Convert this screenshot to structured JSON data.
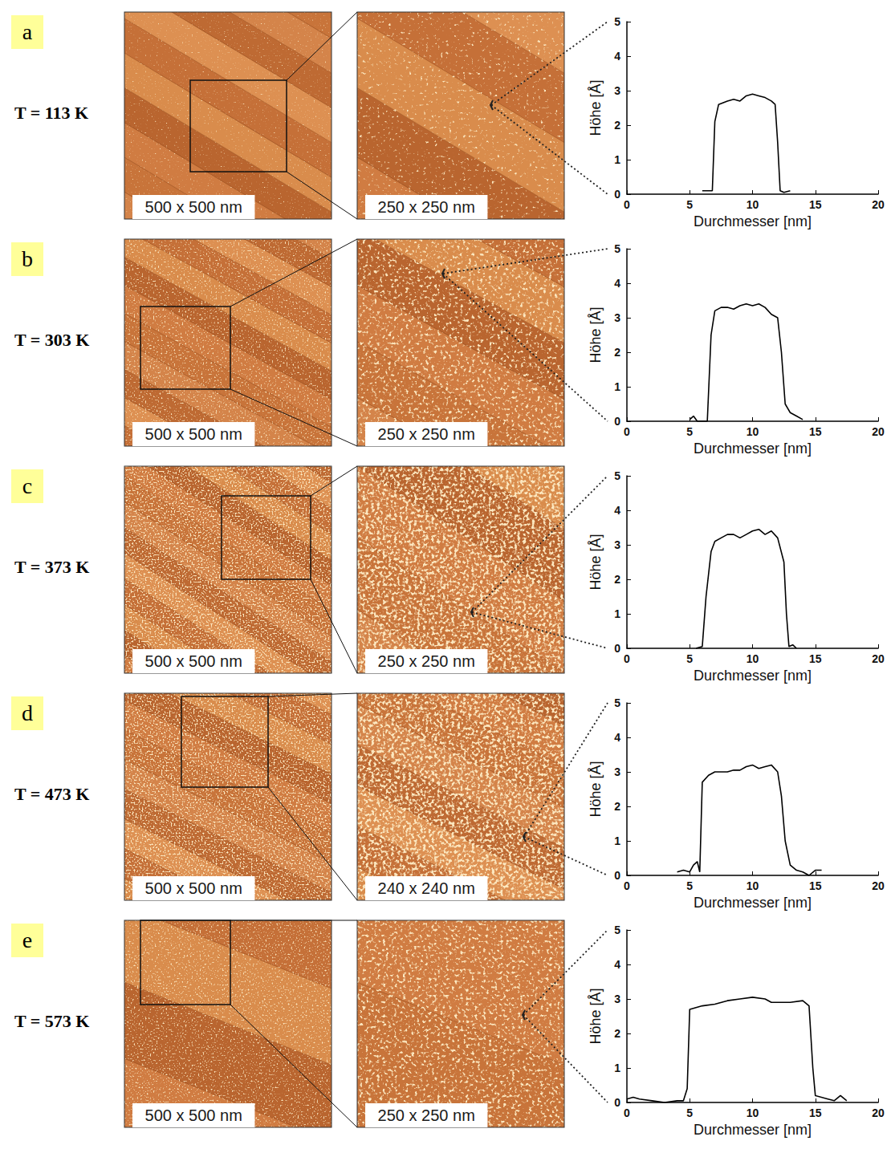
{
  "rows": [
    {
      "letter": "a",
      "temperature": "T = 113 K",
      "image_labels": [
        "500 x 500 nm",
        "250 x 250 nm"
      ]
    },
    {
      "letter": "b",
      "temperature": "T = 303 K",
      "image_labels": [
        "500 x 500 nm",
        "250 x 250 nm"
      ]
    },
    {
      "letter": "c",
      "temperature": "T = 373 K",
      "image_labels": [
        "500 x 500 nm",
        "250 x 250 nm"
      ]
    },
    {
      "letter": "d",
      "temperature": "T = 473 K",
      "image_labels": [
        "500 x 500 nm",
        "240 x 240 nm"
      ]
    },
    {
      "letter": "e",
      "temperature": "T = 573 K",
      "image_labels": [
        "500 x 500 nm",
        "250 x 250 nm"
      ]
    }
  ],
  "chart_data": [
    {
      "type": "line",
      "xlabel": "Durchmesser [nm]",
      "ylabel": "Höhe [Å]",
      "x": [
        6,
        6.8,
        7,
        7.3,
        8,
        8.5,
        9,
        9.5,
        10,
        10.5,
        11,
        11.5,
        11.8,
        12,
        12.2,
        12.5,
        13
      ],
      "values": [
        0.1,
        0.1,
        2.1,
        2.6,
        2.7,
        2.75,
        2.7,
        2.85,
        2.9,
        2.85,
        2.8,
        2.7,
        2.6,
        1.5,
        0.1,
        0.05,
        0.1
      ],
      "color": "#000000",
      "line_style": "solid",
      "grid": false,
      "xlim": [
        0,
        20
      ],
      "xticks": [
        0,
        5,
        10,
        15,
        20
      ],
      "ylim": [
        0,
        5
      ],
      "yticks": [
        0,
        1,
        2,
        3,
        4,
        5
      ]
    },
    {
      "type": "line",
      "xlabel": "Durchmesser [nm]",
      "ylabel": "Höhe [Å]",
      "x": [
        5,
        5.3,
        5.6,
        6.4,
        6.7,
        7,
        7.5,
        8,
        8.5,
        9,
        9.5,
        10,
        10.5,
        11,
        11.5,
        12,
        12.3,
        12.6,
        13,
        13.5,
        14
      ],
      "values": [
        0.05,
        0.15,
        0,
        0,
        2.5,
        3.2,
        3.3,
        3.3,
        3.25,
        3.35,
        3.4,
        3.35,
        3.4,
        3.3,
        3.1,
        3.0,
        2,
        0.5,
        0.25,
        0.15,
        0.05
      ],
      "color": "#000000",
      "line_style": "solid",
      "grid": false,
      "xlim": [
        0,
        20
      ],
      "xticks": [
        0,
        5,
        10,
        15,
        20
      ],
      "ylim": [
        0,
        5
      ],
      "yticks": [
        0,
        1,
        2,
        3,
        4,
        5
      ]
    },
    {
      "type": "line",
      "xlabel": "Durchmesser [nm]",
      "ylabel": "Höhe [Å]",
      "x": [
        5.5,
        6,
        6.3,
        6.7,
        7,
        7.5,
        8,
        8.5,
        9,
        9.5,
        10,
        10.5,
        11,
        11.5,
        12,
        12.5,
        12.7,
        12.9,
        13.2,
        13.5
      ],
      "values": [
        0,
        0.05,
        1.5,
        2.8,
        3.1,
        3.2,
        3.3,
        3.3,
        3.2,
        3.3,
        3.4,
        3.45,
        3.3,
        3.4,
        3.2,
        2.5,
        1,
        0.05,
        0.1,
        0
      ],
      "color": "#000000",
      "line_style": "solid",
      "grid": false,
      "xlim": [
        0,
        20
      ],
      "xticks": [
        0,
        5,
        10,
        15,
        20
      ],
      "ylim": [
        0,
        5
      ],
      "yticks": [
        0,
        1,
        2,
        3,
        4,
        5
      ]
    },
    {
      "type": "line",
      "xlabel": "Durchmesser [nm]",
      "ylabel": "Höhe [Å]",
      "x": [
        4,
        4.5,
        5,
        5.3,
        5.6,
        5.8,
        6,
        6.5,
        7,
        7.5,
        8,
        8.5,
        9,
        9.5,
        10,
        10.5,
        11,
        11.5,
        12,
        12.3,
        12.6,
        13,
        13.5,
        14,
        14.5,
        15,
        15.5
      ],
      "values": [
        0.1,
        0.15,
        0.1,
        0.3,
        0.4,
        0.1,
        2.7,
        2.9,
        3.0,
        3.0,
        3.0,
        3.05,
        3.05,
        3.15,
        3.2,
        3.1,
        3.15,
        3.2,
        3.0,
        2.3,
        1.0,
        0.3,
        0.15,
        0.1,
        0,
        0.15,
        0.15
      ],
      "color": "#000000",
      "line_style": "solid",
      "grid": false,
      "xlim": [
        0,
        20
      ],
      "xticks": [
        0,
        5,
        10,
        15,
        20
      ],
      "ylim": [
        0,
        5
      ],
      "yticks": [
        0,
        1,
        2,
        3,
        4,
        5
      ]
    },
    {
      "type": "line",
      "xlabel": "Durchmesser [nm]",
      "ylabel": "Höhe [Å]",
      "x": [
        0,
        0.5,
        1,
        2,
        3,
        4,
        4.5,
        4.8,
        5,
        5.5,
        6,
        7,
        8,
        9,
        10,
        11,
        11.5,
        12,
        13,
        14,
        14.5,
        14.8,
        15,
        16,
        16.5,
        17,
        17.5
      ],
      "values": [
        0.1,
        0.15,
        0.1,
        0.05,
        0,
        0.05,
        0.05,
        0.4,
        2.7,
        2.75,
        2.8,
        2.85,
        2.95,
        3.0,
        3.05,
        3.0,
        2.9,
        2.9,
        2.9,
        2.95,
        2.8,
        1,
        0.2,
        0.1,
        0.05,
        0.2,
        0.05
      ],
      "color": "#000000",
      "line_style": "solid",
      "grid": false,
      "xlim": [
        0,
        20
      ],
      "xticks": [
        0,
        5,
        10,
        15,
        20
      ],
      "ylim": [
        0,
        5
      ],
      "yticks": [
        0,
        1,
        2,
        3,
        4,
        5
      ]
    }
  ]
}
